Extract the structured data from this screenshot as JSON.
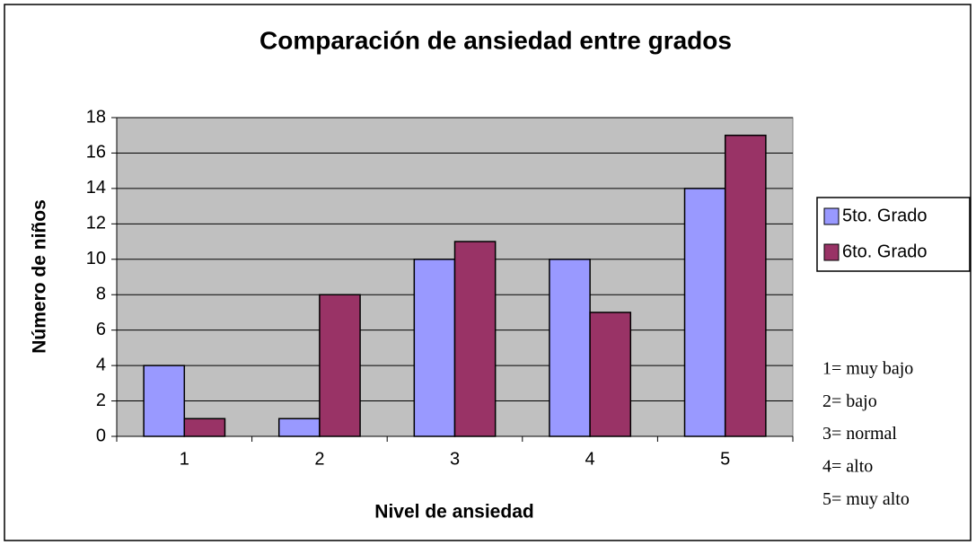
{
  "chart_data": {
    "type": "bar",
    "title": "Comparación de ansiedad entre grados",
    "x_label": "Nivel de ansiedad",
    "y_label": "Número de niños",
    "categories": [
      "1",
      "2",
      "3",
      "4",
      "5"
    ],
    "series": [
      {
        "name": "5to. Grado",
        "color": "#9999ff",
        "values": [
          4,
          1,
          10,
          10,
          14
        ]
      },
      {
        "name": "6to. Grado",
        "color": "#993366",
        "values": [
          1,
          8,
          11,
          7,
          17
        ]
      }
    ],
    "ylim": [
      0,
      18
    ],
    "yticks": [
      0,
      2,
      4,
      6,
      8,
      10,
      12,
      14,
      16,
      18
    ],
    "grid": true,
    "legend": "right",
    "annotations": [
      "1= muy bajo",
      "2= bajo",
      "3= normal",
      "4= alto",
      "5= muy alto"
    ]
  }
}
